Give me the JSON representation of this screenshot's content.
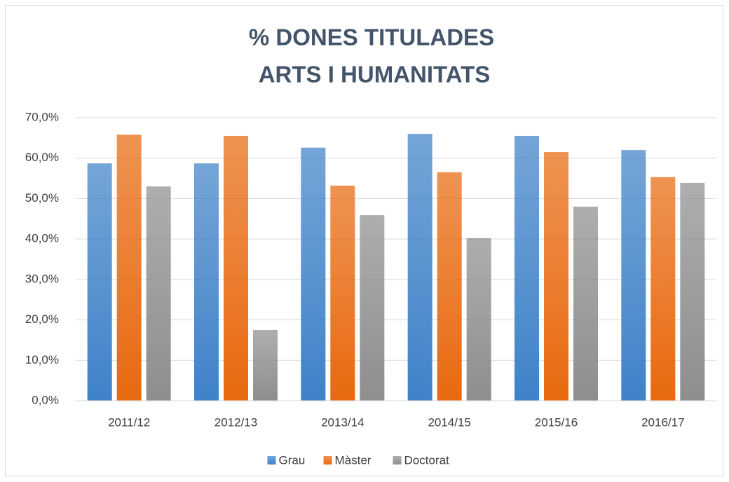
{
  "chart_data": {
    "type": "bar",
    "title": [
      "% DONES TITULADES",
      "ARTS I HUMANITATS"
    ],
    "categories": [
      "2011/12",
      "2012/13",
      "2013/14",
      "2014/15",
      "2015/16",
      "2016/17"
    ],
    "series": [
      {
        "name": "Grau",
        "color": "#3f82c8",
        "values": [
          58.7,
          58.7,
          62.6,
          66.0,
          65.5,
          62.0
        ]
      },
      {
        "name": "Màster",
        "color": "#e8690f",
        "values": [
          65.8,
          65.5,
          53.2,
          56.5,
          61.5,
          55.3
        ]
      },
      {
        "name": "Doctorat",
        "color": "#8e8e8e",
        "values": [
          53.0,
          17.5,
          45.9,
          40.2,
          48.0,
          53.9
        ]
      }
    ],
    "ylim": [
      0,
      70
    ],
    "yticks": [
      {
        "value": 0,
        "label": "0,0%"
      },
      {
        "value": 10,
        "label": "10,0%"
      },
      {
        "value": 20,
        "label": "20,0%"
      },
      {
        "value": 30,
        "label": "30,0%"
      },
      {
        "value": 40,
        "label": "40,0%"
      },
      {
        "value": 50,
        "label": "50,0%"
      },
      {
        "value": 60,
        "label": "60,0%"
      },
      {
        "value": 70,
        "label": "70,0%"
      }
    ],
    "grid": true,
    "legend": "bottom"
  }
}
